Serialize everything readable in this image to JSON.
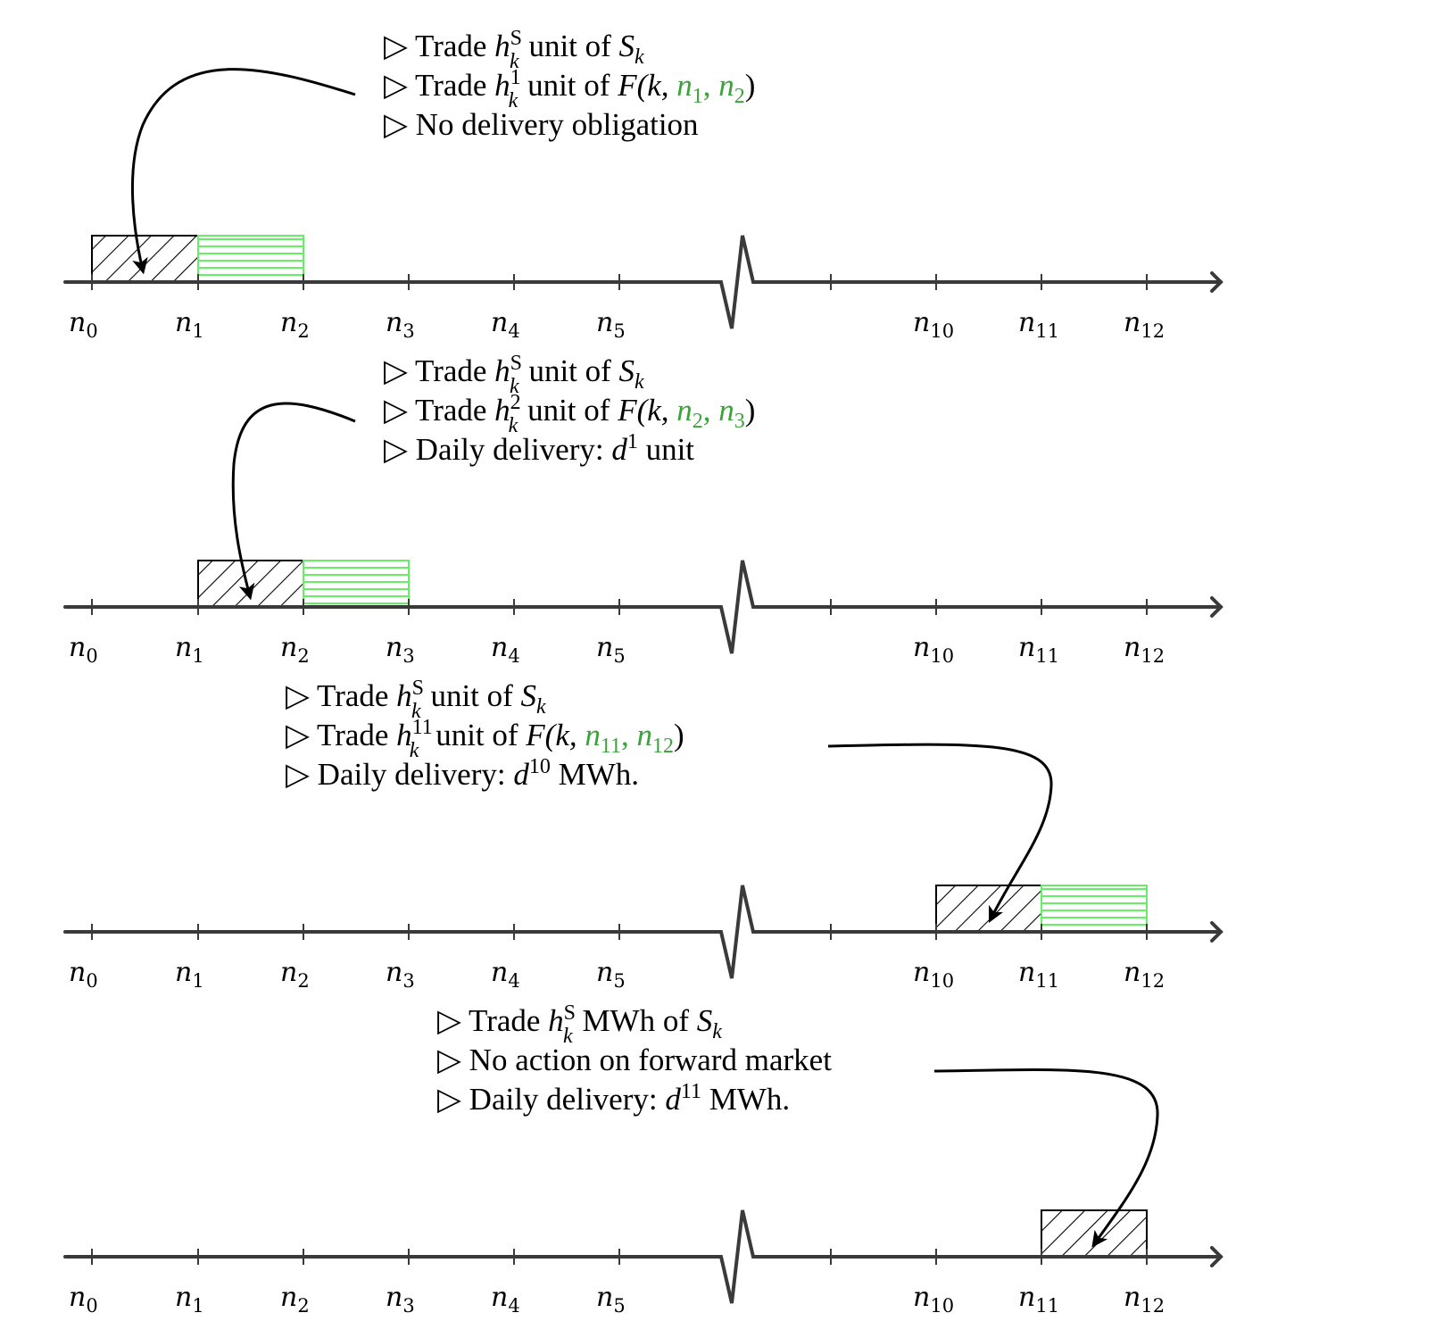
{
  "tick_labels": [
    "n",
    "n",
    "n",
    "n",
    "n",
    "n",
    "n",
    "n",
    "n"
  ],
  "tick_subscripts": [
    "0",
    "1",
    "2",
    "3",
    "4",
    "5",
    "10",
    "11",
    "12"
  ],
  "rows": [
    {
      "annotation": [
        {
          "tri": "▷",
          "pre": "Trade ",
          "var": "h",
          "sup": "S",
          "sub": "k",
          "mid": " unit of ",
          "obj": "S",
          "objsub": "k"
        },
        {
          "tri": "▷",
          "pre": "Trade ",
          "var": "h",
          "sup": "1",
          "sub": "k",
          "mid": " unit of ",
          "fwd": "F(k, ",
          "g1": "n",
          "g1sub": "1",
          "comma": ", ",
          "g2": "n",
          "g2sub": "2",
          "close": ")"
        },
        {
          "tri": "▷",
          "text": "No delivery obligation"
        }
      ],
      "hatched_interval": [
        "n0",
        "n1"
      ],
      "green_interval": [
        "n1",
        "n2"
      ]
    },
    {
      "annotation": [
        {
          "tri": "▷",
          "pre": "Trade ",
          "var": "h",
          "sup": "S",
          "sub": "k",
          "mid": " unit of ",
          "obj": "S",
          "objsub": "k"
        },
        {
          "tri": "▷",
          "pre": "Trade ",
          "var": "h",
          "sup": "2",
          "sub": "k",
          "mid": " unit of ",
          "fwd": "F(k, ",
          "g1": "n",
          "g1sub": "2",
          "comma": ", ",
          "g2": "n",
          "g2sub": "3",
          "close": ")"
        },
        {
          "tri": "▷",
          "pre": "Daily delivery: ",
          "var": "d",
          "sup": "1",
          "post": " unit"
        }
      ],
      "hatched_interval": [
        "n1",
        "n2"
      ],
      "green_interval": [
        "n2",
        "n3"
      ]
    },
    {
      "annotation": [
        {
          "tri": "▷",
          "pre": "Trade ",
          "var": "h",
          "sup": "S",
          "sub": "k",
          "mid": " unit of ",
          "obj": "S",
          "objsub": "k"
        },
        {
          "tri": "▷",
          "pre": "Trade ",
          "var": "h",
          "sup": "11",
          "sub": "k",
          "mid": " unit of ",
          "fwd": "F(k, ",
          "g1": "n",
          "g1sub": "11",
          "comma": ", ",
          "g2": "n",
          "g2sub": "12",
          "close": ")"
        },
        {
          "tri": "▷",
          "pre": "Daily delivery: ",
          "var": "d",
          "sup": "10",
          "post": " MWh."
        }
      ],
      "hatched_interval": [
        "n10",
        "n11"
      ],
      "green_interval": [
        "n11",
        "n12"
      ]
    },
    {
      "annotation": [
        {
          "tri": "▷",
          "pre": "Trade ",
          "var": "h",
          "sup": "S",
          "sub": "k",
          "mid": " MWh of ",
          "obj": "S",
          "objsub": "k"
        },
        {
          "tri": "▷",
          "text": "No action on forward market"
        },
        {
          "tri": "▷",
          "pre": "Daily delivery: ",
          "var": "d",
          "sup": "11",
          "post": " MWh."
        }
      ],
      "hatched_interval": [
        "n11",
        "n12"
      ],
      "green_interval": null
    }
  ],
  "colors": {
    "axis": "#3a3a3a",
    "green_box": "#66ee66",
    "green_text": "#3aa33a",
    "hatch": "#000000"
  }
}
